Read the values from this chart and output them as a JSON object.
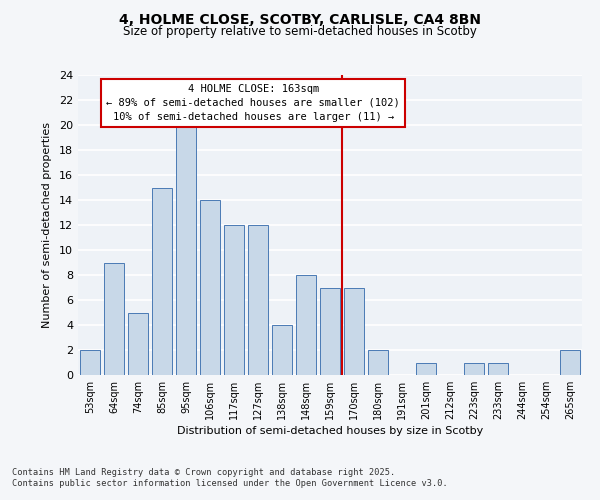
{
  "title": "4, HOLME CLOSE, SCOTBY, CARLISLE, CA4 8BN",
  "subtitle": "Size of property relative to semi-detached houses in Scotby",
  "xlabel": "Distribution of semi-detached houses by size in Scotby",
  "ylabel": "Number of semi-detached properties",
  "categories": [
    "53sqm",
    "64sqm",
    "74sqm",
    "85sqm",
    "95sqm",
    "106sqm",
    "117sqm",
    "127sqm",
    "138sqm",
    "148sqm",
    "159sqm",
    "170sqm",
    "180sqm",
    "191sqm",
    "201sqm",
    "212sqm",
    "223sqm",
    "233sqm",
    "244sqm",
    "254sqm",
    "265sqm"
  ],
  "values": [
    2,
    9,
    5,
    15,
    20,
    14,
    12,
    12,
    4,
    8,
    7,
    7,
    2,
    0,
    1,
    0,
    1,
    1,
    0,
    0,
    2
  ],
  "bar_color": "#c8d8e8",
  "bar_edge_color": "#4a7ab5",
  "property_label": "4 HOLME CLOSE: 163sqm",
  "annotation_line1": "← 89% of semi-detached houses are smaller (102)",
  "annotation_line2": "10% of semi-detached houses are larger (11) →",
  "annotation_box_color": "#cc0000",
  "vline_color": "#cc0000",
  "ylim": [
    0,
    24
  ],
  "yticks": [
    0,
    2,
    4,
    6,
    8,
    10,
    12,
    14,
    16,
    18,
    20,
    22,
    24
  ],
  "background_color": "#eef2f7",
  "grid_color": "#ffffff",
  "fig_background": "#f4f6f9",
  "footer_line1": "Contains HM Land Registry data © Crown copyright and database right 2025.",
  "footer_line2": "Contains public sector information licensed under the Open Government Licence v3.0."
}
